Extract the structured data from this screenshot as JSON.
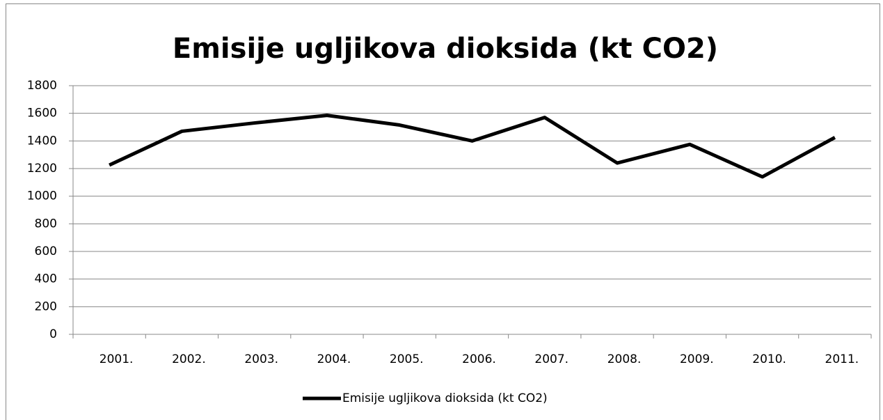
{
  "chart_data": {
    "type": "line",
    "title": "Emisije ugljikova dioksida (kt CO2)",
    "categories": [
      "2001.",
      "2002.",
      "2003.",
      "2004.",
      "2005.",
      "2006.",
      "2007.",
      "2008.",
      "2009.",
      "2010.",
      "2011."
    ],
    "series": [
      {
        "name": "Emisije ugljikova dioksida (kt CO2)",
        "color": "#000000",
        "values": [
          1225,
          1470,
          1530,
          1585,
          1515,
          1400,
          1570,
          1240,
          1375,
          1140,
          1425
        ]
      }
    ],
    "ylim": [
      0,
      1800
    ],
    "yticks": [
      0,
      200,
      400,
      600,
      800,
      1000,
      1200,
      1400,
      1600,
      1800
    ],
    "grid": true,
    "legend": "bottom"
  }
}
